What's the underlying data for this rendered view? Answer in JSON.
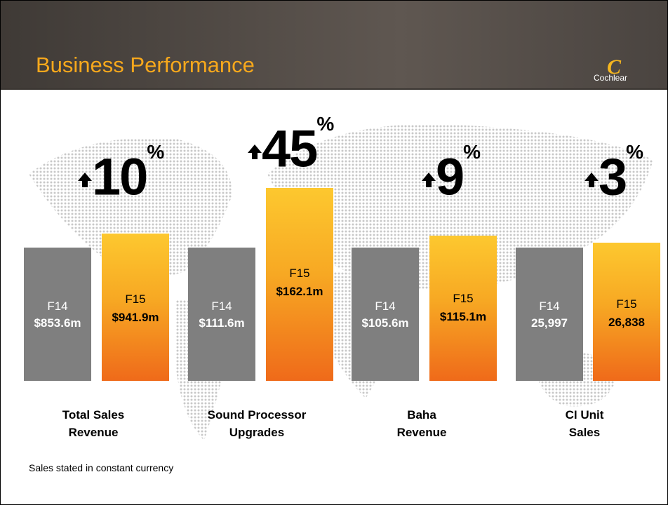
{
  "header": {
    "title": "Business Performance",
    "logo_text": "Cochlear"
  },
  "groups": [
    {
      "label_line1": "Total Sales",
      "label_line2": "Revenue",
      "growth": "10",
      "growth_unit": "%",
      "prior": {
        "period": "F14",
        "value": "$853.6m"
      },
      "current": {
        "period": "F15",
        "value": "$941.9m"
      }
    },
    {
      "label_line1": "Sound Processor",
      "label_line2": "Upgrades",
      "growth": "45",
      "growth_unit": "%",
      "prior": {
        "period": "F14",
        "value": "$111.6m"
      },
      "current": {
        "period": "F15",
        "value": "$162.1m"
      }
    },
    {
      "label_line1": "Baha",
      "label_line2": "Revenue",
      "growth": "9",
      "growth_unit": "%",
      "prior": {
        "period": "F14",
        "value": "$105.6m"
      },
      "current": {
        "period": "F15",
        "value": "$115.1m"
      }
    },
    {
      "label_line1": "CI Unit",
      "label_line2": "Sales",
      "growth": "3",
      "growth_unit": "%",
      "prior": {
        "period": "F14",
        "value": "25,997"
      },
      "current": {
        "period": "F15",
        "value": "26,838"
      }
    }
  ],
  "footnote": "Sales stated in constant currency"
}
